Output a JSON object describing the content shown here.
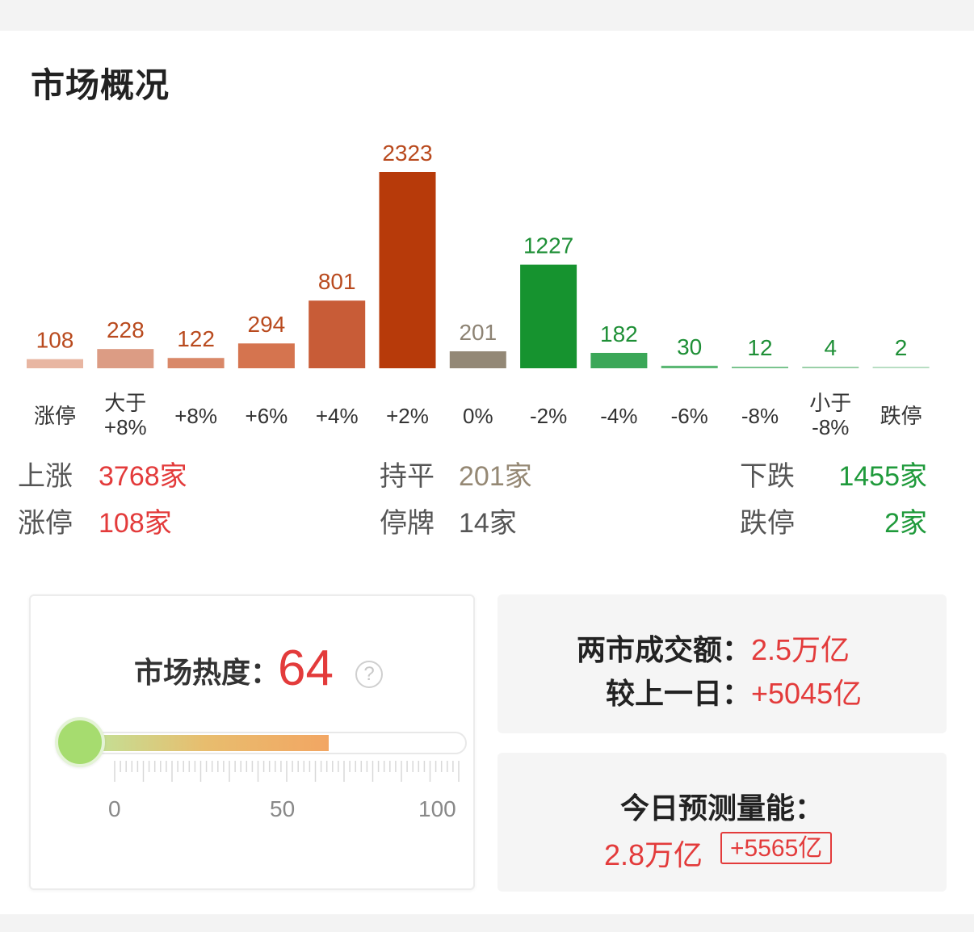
{
  "title": "市场概况",
  "colors": {
    "up": "#e33b3b",
    "down": "#1f9a3b",
    "flat": "#958874"
  },
  "chart_data": {
    "type": "bar",
    "categories": [
      "涨停",
      "大于\n+8%",
      "+8%",
      "+6%",
      "+4%",
      "+2%",
      "0%",
      "-2%",
      "-4%",
      "-6%",
      "-8%",
      "小于\n-8%",
      "跌停"
    ],
    "values": [
      108,
      228,
      122,
      294,
      801,
      2323,
      201,
      1227,
      182,
      30,
      12,
      4,
      2
    ],
    "bar_colors": [
      "#e8b6a2",
      "#dc9c84",
      "#d98868",
      "#d5744f",
      "#c85c37",
      "#b73a0a",
      "#938876",
      "#16932f",
      "#3ba758",
      "#5cb874",
      "#7ac48e",
      "#9ad0a8",
      "#b8dec3"
    ],
    "label_colors": [
      "#b94a1e",
      "#b94a1e",
      "#b94a1e",
      "#b94a1e",
      "#b94a1e",
      "#b94a1e",
      "#8d8374",
      "#1e8f36",
      "#1e8f36",
      "#1e8f36",
      "#1e8f36",
      "#1e8f36",
      "#1e8f36"
    ],
    "ylim": [
      0,
      2323
    ],
    "title": "",
    "xlabel": "",
    "ylabel": ""
  },
  "stats": {
    "up_label": "上涨",
    "up_value": "3768家",
    "flat_label": "持平",
    "flat_value": "201家",
    "down_label": "下跌",
    "down_value": "1455家",
    "limit_up_label": "涨停",
    "limit_up_value": "108家",
    "suspended_label": "停牌",
    "suspended_value": "14家",
    "limit_down_label": "跌停",
    "limit_down_value": "2家"
  },
  "heat": {
    "label": "市场热度：",
    "value": "64",
    "level": 64,
    "help": "?",
    "scale": [
      "0",
      "50",
      "100"
    ]
  },
  "volume": {
    "total_label": "两市成交额：",
    "total_value": "2.5万亿",
    "change_label": "较上一日：",
    "change_value": "+5045亿"
  },
  "forecast": {
    "label": "今日预测量能：",
    "value": "2.8万亿",
    "change": "+5565亿"
  }
}
